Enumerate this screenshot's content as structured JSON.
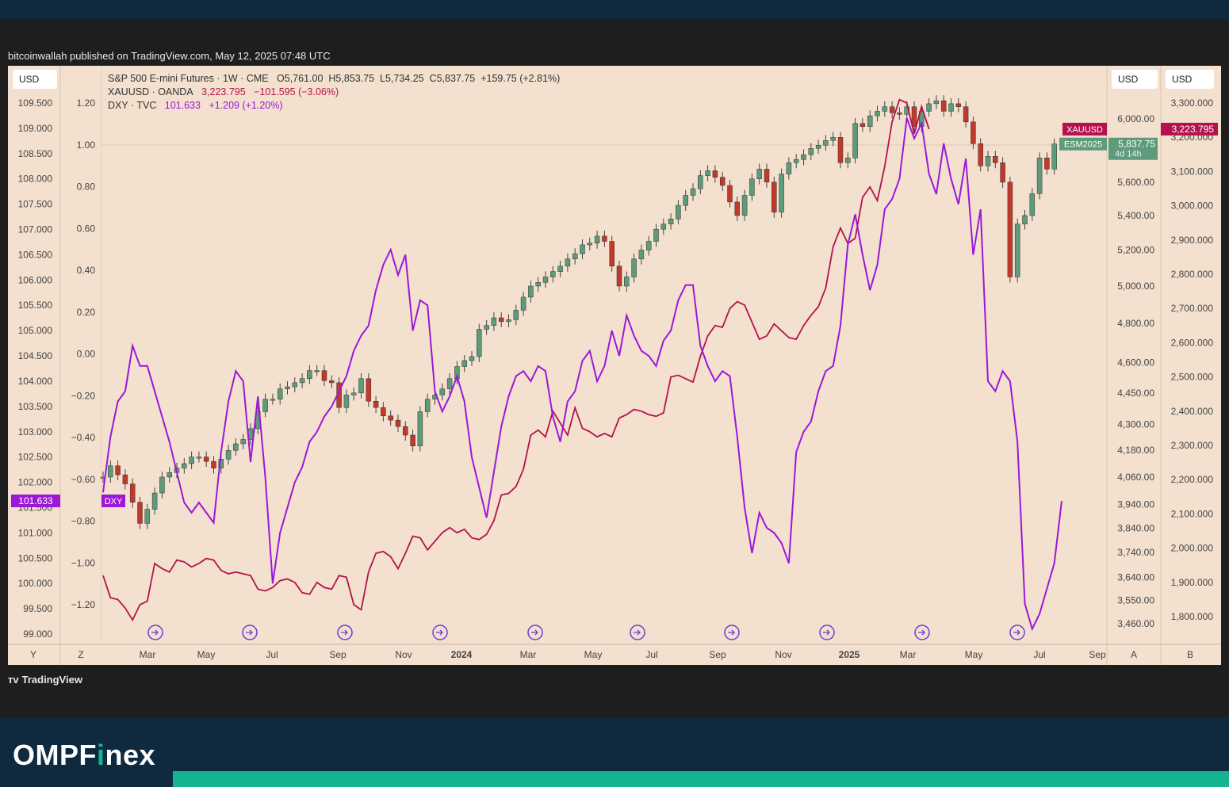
{
  "header": {
    "publisher": "bitcoinwallah published on TradingView.com, May 12, 2025 07:48 UTC"
  },
  "footer": {
    "tradingview_logo": "TradingView",
    "brand_name_prefix": "OMPF",
    "brand_name_accent": "i",
    "brand_name_suffix": "nex"
  },
  "controls": {
    "left_unit": "USD",
    "right_unit_1": "USD",
    "right_unit_2": "USD",
    "btn_y": "Y",
    "btn_z": "Z",
    "btn_a": "A",
    "btn_b": "B"
  },
  "legend": {
    "es": {
      "title": "S&P 500 E-mini Futures · 1W · CME",
      "o": "O5,761.00",
      "h": "H5,853.75",
      "l": "L5,734.25",
      "c": "C5,837.75",
      "chg": "+159.75 (+2.81%)"
    },
    "xau": {
      "title": "XAUUSD · OANDA",
      "last": "3,223.795",
      "chg": "−101.595 (−3.06%)"
    },
    "dxy": {
      "title": "DXY · TVC",
      "last": "101.633",
      "chg": "+1.209 (+1.20%)"
    }
  },
  "colors": {
    "bg": "#f3e0ce",
    "up": "#5e9b7a",
    "down": "#c0392b",
    "gold": "#b5124d",
    "dxy": "#9b18d8",
    "text": "#333333"
  },
  "chart_data": {
    "type": "line",
    "x_tick_labels": [
      "Mar",
      "May",
      "Jul",
      "Sep",
      "Nov",
      "2024",
      "Mar",
      "May",
      "Jul",
      "Sep",
      "Nov",
      "2025",
      "Mar",
      "May",
      "Jul",
      "Sep"
    ],
    "axes": {
      "dxy_axis": {
        "ticks": [
          "109.500",
          "109.000",
          "108.500",
          "108.000",
          "107.500",
          "107.000",
          "106.500",
          "106.000",
          "105.500",
          "105.000",
          "104.500",
          "104.000",
          "103.500",
          "103.000",
          "102.500",
          "102.000",
          "101.500",
          "101.000",
          "100.500",
          "100.000",
          "99.500",
          "99.000"
        ],
        "ylim": [
          99.0,
          109.5
        ]
      },
      "pct_axis": {
        "ticks": [
          "1.20",
          "1.00",
          "0.80",
          "0.60",
          "0.40",
          "0.20",
          "0.00",
          "−0.20",
          "−0.40",
          "−0.60",
          "−0.80",
          "−1.00",
          "−1.20"
        ],
        "ylim": [
          -1.2,
          1.2
        ]
      },
      "es_axis": {
        "ticks": [
          "6,000.00",
          "5,600.00",
          "5,400.00",
          "5,200.00",
          "5,000.00",
          "4,800.00",
          "4,600.00",
          "4,450.00",
          "4,300.00",
          "4,180.00",
          "4,060.00",
          "3,940.00",
          "3,840.00",
          "3,740.00",
          "3,640.00",
          "3,550.00",
          "3,460.00"
        ],
        "scale": "log"
      },
      "xau_axis": {
        "ticks": [
          "3,300.000",
          "3,200.000",
          "3,100.000",
          "3,000.000",
          "2,900.000",
          "2,800.000",
          "2,700.000",
          "2,600.000",
          "2,500.000",
          "2,400.000",
          "2,300.000",
          "2,200.000",
          "2,100.000",
          "2,000.000",
          "1,900.000",
          "1,800.000"
        ],
        "ylim": [
          1800,
          3300
        ]
      }
    },
    "price_labels": {
      "dxy": {
        "label": "DXY",
        "value": "101.633"
      },
      "xau": {
        "label": "XAUUSD",
        "value": "3,223.795"
      },
      "es": {
        "label": "ESM2025",
        "value": "5,837.75",
        "countdown": "4d 14h"
      }
    },
    "series": [
      {
        "name": "S&P 500 E-mini Futures · 1W · CME",
        "type": "candlestick",
        "weekly_close": [
          4060,
          4110,
          4070,
          4030,
          3950,
          3860,
          3920,
          3990,
          4060,
          4080,
          4100,
          4120,
          4150,
          4150,
          4130,
          4100,
          4140,
          4180,
          4210,
          4230,
          4280,
          4360,
          4420,
          4420,
          4470,
          4480,
          4500,
          4520,
          4560,
          4560,
          4510,
          4500,
          4380,
          4440,
          4450,
          4520,
          4410,
          4380,
          4340,
          4320,
          4290,
          4250,
          4200,
          4360,
          4420,
          4440,
          4470,
          4520,
          4580,
          4610,
          4630,
          4770,
          4790,
          4830,
          4810,
          4820,
          4870,
          4940,
          5000,
          5020,
          5050,
          5080,
          5110,
          5150,
          5180,
          5230,
          5240,
          5280,
          5250,
          5110,
          5000,
          5050,
          5150,
          5200,
          5250,
          5320,
          5350,
          5380,
          5460,
          5520,
          5560,
          5640,
          5670,
          5630,
          5580,
          5480,
          5400,
          5520,
          5620,
          5680,
          5600,
          5420,
          5650,
          5720,
          5740,
          5770,
          5810,
          5830,
          5860,
          5880,
          5720,
          5750,
          5970,
          5950,
          6020,
          6050,
          6080,
          6040,
          6030,
          6080,
          5950,
          6050,
          6100,
          6120,
          6050,
          6100,
          6080,
          5980,
          5840,
          5700,
          5760,
          5720,
          5600,
          5050,
          5350,
          5400,
          5530,
          5750,
          5680,
          5838
        ]
      },
      {
        "name": "XAUUSD · OANDA",
        "type": "line",
        "weekly_close": [
          1920,
          1855,
          1850,
          1825,
          1790,
          1835,
          1845,
          1955,
          1940,
          1930,
          1965,
          1960,
          1945,
          1955,
          1970,
          1965,
          1935,
          1925,
          1930,
          1925,
          1920,
          1880,
          1875,
          1885,
          1905,
          1910,
          1900,
          1870,
          1865,
          1900,
          1885,
          1880,
          1920,
          1915,
          1835,
          1820,
          1930,
          1985,
          1990,
          1975,
          1940,
          1985,
          2035,
          2030,
          1995,
          2020,
          2045,
          2060,
          2045,
          2055,
          2030,
          2025,
          2040,
          2080,
          2155,
          2160,
          2180,
          2230,
          2330,
          2345,
          2325,
          2400,
          2365,
          2330,
          2410,
          2350,
          2340,
          2325,
          2335,
          2325,
          2380,
          2390,
          2405,
          2400,
          2390,
          2385,
          2395,
          2500,
          2505,
          2495,
          2485,
          2560,
          2620,
          2650,
          2645,
          2700,
          2720,
          2710,
          2660,
          2610,
          2620,
          2655,
          2635,
          2615,
          2610,
          2650,
          2680,
          2705,
          2760,
          2880,
          2935,
          2890,
          2905,
          3025,
          3055,
          3015,
          3115,
          3245,
          3310,
          3300,
          3210,
          3290,
          3223.795
        ]
      },
      {
        "name": "DXY · TVC",
        "type": "line",
        "weekly_close": [
          101.8,
          102.9,
          103.6,
          103.8,
          104.7,
          104.3,
          104.3,
          103.8,
          103.3,
          102.8,
          102.2,
          101.6,
          101.4,
          101.6,
          101.4,
          101.2,
          102.6,
          103.6,
          104.2,
          104.0,
          102.4,
          103.7,
          102.1,
          100.0,
          101.0,
          101.5,
          102.0,
          102.3,
          102.8,
          103.0,
          103.3,
          103.5,
          103.8,
          104.1,
          104.6,
          104.9,
          105.1,
          105.8,
          106.3,
          106.6,
          106.1,
          106.5,
          105.0,
          105.6,
          105.5,
          103.8,
          103.4,
          103.7,
          104.1,
          103.6,
          102.5,
          101.9,
          101.3,
          102.2,
          103.1,
          103.7,
          104.1,
          104.2,
          104.0,
          104.3,
          104.2,
          103.3,
          102.8,
          103.6,
          103.8,
          104.4,
          104.6,
          104.0,
          104.3,
          105.0,
          104.5,
          105.3,
          104.9,
          104.6,
          104.5,
          104.3,
          104.8,
          105.0,
          105.6,
          105.9,
          105.9,
          104.7,
          104.3,
          104.0,
          104.2,
          104.1,
          102.9,
          101.5,
          100.6,
          101.4,
          101.1,
          101.0,
          100.8,
          100.4,
          102.6,
          103.0,
          103.2,
          103.8,
          104.2,
          104.3,
          105.1,
          106.7,
          107.3,
          106.5,
          105.8,
          106.3,
          107.4,
          107.6,
          108.0,
          109.2,
          108.8,
          109.1,
          108.1,
          107.7,
          108.7,
          108.0,
          107.5,
          108.4,
          106.5,
          107.4,
          104.0,
          103.8,
          104.2,
          104.0,
          102.8,
          99.6,
          99.1,
          99.4,
          99.9,
          100.4,
          101.633
        ]
      }
    ]
  }
}
